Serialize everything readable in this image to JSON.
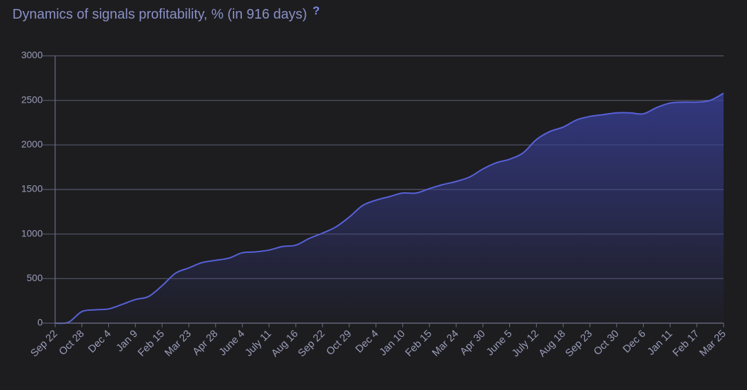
{
  "chart_data": {
    "type": "area",
    "title": "Dynamics of signals profitability, % (in 916 days)",
    "help": "?",
    "categories": [
      "Sep 22",
      null,
      "Oct 28",
      null,
      "Dec 4",
      null,
      "Jan 9",
      null,
      "Feb 15",
      null,
      "Mar 23",
      null,
      "Apr 28",
      null,
      "June 4",
      null,
      "July 11",
      null,
      "Aug 16",
      null,
      "Sep 22",
      null,
      "Oct 29",
      null,
      "Dec 4",
      null,
      "Jan 10",
      null,
      "Feb 15",
      null,
      "Mar 24",
      null,
      "Apr 30",
      null,
      "June 5",
      null,
      "July 12",
      null,
      "Aug 18",
      null,
      "Sep 23",
      null,
      "Oct 30",
      null,
      "Dec 6",
      null,
      "Jan 11",
      null,
      "Feb 17",
      null,
      "Mar 25"
    ],
    "values": [
      0,
      10,
      130,
      150,
      160,
      210,
      265,
      300,
      420,
      560,
      620,
      680,
      705,
      730,
      790,
      800,
      820,
      860,
      875,
      950,
      1010,
      1080,
      1190,
      1320,
      1380,
      1420,
      1460,
      1460,
      1510,
      1555,
      1590,
      1640,
      1730,
      1800,
      1840,
      1910,
      2060,
      2150,
      2200,
      2280,
      2320,
      2340,
      2360,
      2360,
      2350,
      2420,
      2470,
      2480,
      2480,
      2500,
      2580
    ],
    "color": "#5862d8",
    "ylim": [
      0,
      3000
    ],
    "yticks": [
      0,
      500,
      1000,
      1500,
      2000,
      2500,
      3000
    ],
    "grid": true
  }
}
